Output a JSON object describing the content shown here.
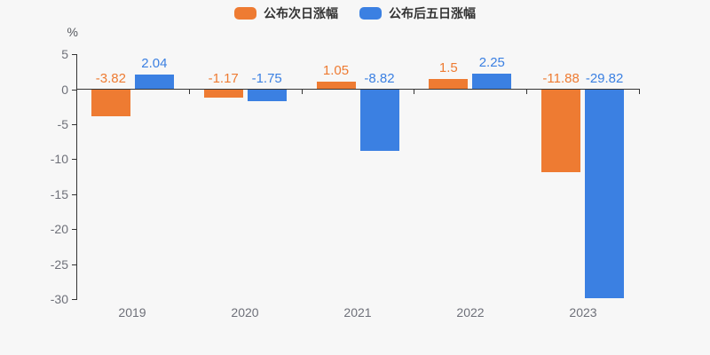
{
  "chart_data": {
    "type": "bar",
    "title": "",
    "categories": [
      "2019",
      "2020",
      "2021",
      "2022",
      "2023"
    ],
    "series": [
      {
        "name": "公布次日涨幅",
        "color": "#ee7b32",
        "values": [
          -3.82,
          -1.17,
          1.05,
          1.5,
          -11.88
        ],
        "labels": [
          "-3.82",
          "-1.17",
          "1.05",
          "1.5",
          "-11.88"
        ]
      },
      {
        "name": "公布后五日涨幅",
        "color": "#3b80e2",
        "values": [
          2.04,
          -1.75,
          -8.82,
          2.25,
          -29.82
        ],
        "labels": [
          "2.04",
          "-1.75",
          "-8.82",
          "2.25",
          "-29.82"
        ]
      }
    ],
    "xlabel": "",
    "ylabel": "%",
    "y_ticks": [
      5,
      0,
      -5,
      -10,
      -15,
      -20,
      -25,
      -30
    ],
    "ylim": [
      -30,
      5
    ],
    "grid": false,
    "legend_position": "top"
  },
  "colors": {
    "background": "#f7f7f7",
    "axis_line": "#333333",
    "tick_text": "#6e7079",
    "legend_text": "#333333"
  }
}
